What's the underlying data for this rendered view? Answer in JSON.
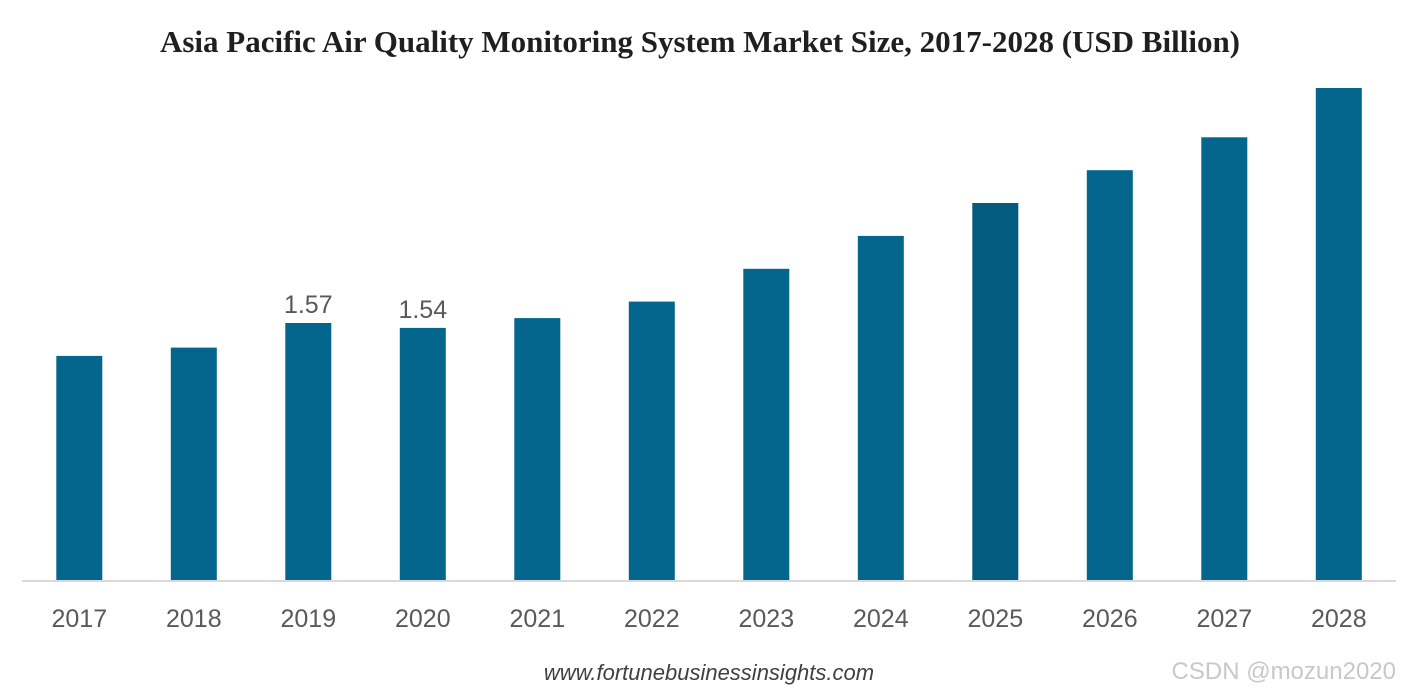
{
  "chart_data": {
    "type": "bar",
    "title": "Asia Pacific Air Quality Monitoring System Market Size, 2017-2028 (USD Billion)",
    "xlabel": "",
    "ylabel": "",
    "categories": [
      "2017",
      "2018",
      "2019",
      "2020",
      "2021",
      "2022",
      "2023",
      "2024",
      "2025",
      "2026",
      "2027",
      "2028"
    ],
    "values": [
      1.37,
      1.42,
      1.57,
      1.54,
      1.6,
      1.7,
      1.9,
      2.1,
      2.3,
      2.5,
      2.7,
      3.0
    ],
    "data_labels": [
      "",
      "",
      "1.57",
      "1.54",
      "",
      "",
      "",
      "",
      "",
      "",
      "",
      ""
    ],
    "ylim": [
      0,
      3.0
    ],
    "grid": false,
    "legend": "none",
    "colors": {
      "bar": "#05668d",
      "bar_highlight": "#035b7e",
      "axis": "#d9d9d9"
    },
    "highlight_index": 8
  },
  "source": "www.fortunebusinessinsights.com",
  "watermark": "CSDN @mozun2020"
}
